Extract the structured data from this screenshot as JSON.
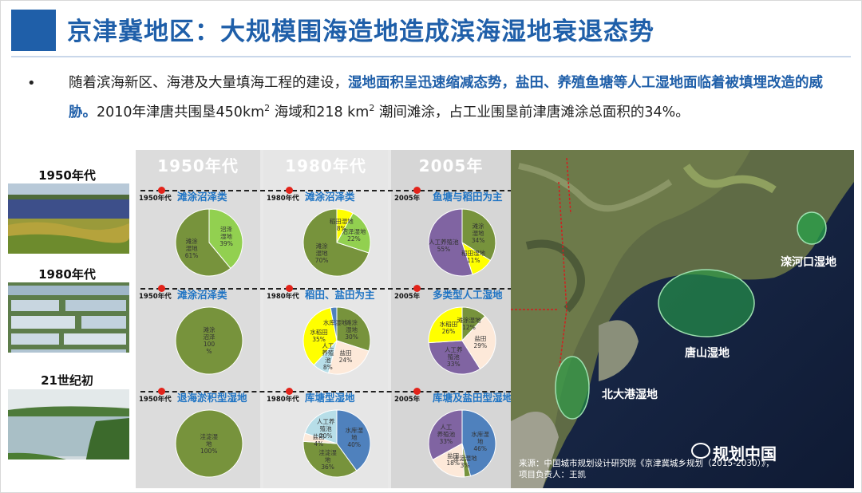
{
  "title": "京津冀地区：大规模围海造地造成滨海湿地衰退态势",
  "bullet": {
    "part1": "随着滨海新区、海港及大量填海工程的建设，",
    "highlight": "湿地面积呈迅速缩减态势，盐田、养殖鱼塘等人工湿地面临着被填埋改造的威胁。",
    "part2a": "2010年津唐共围垦450km",
    "sup1": "2",
    "part2b": " 海域和218 km",
    "sup2": "2",
    "part2c": " 潮间滩涂，占工业围垦前津唐滩涂总面积的34%。"
  },
  "photos": [
    {
      "label": "1950年代"
    },
    {
      "label": "1980年代"
    },
    {
      "label": "21世纪初"
    }
  ],
  "columns": [
    {
      "head": "1950年代"
    },
    {
      "head": "1980年代"
    },
    {
      "head": "2005年"
    }
  ],
  "rows": [
    {
      "cells": [
        {
          "era": "1950年代",
          "title": "滩涂沼泽类",
          "slices": [
            {
              "label": "沼泽\n湿地\n39%",
              "value": 39,
              "color": "#92d050"
            },
            {
              "label": "滩涂\n湿地\n61%",
              "value": 61,
              "color": "#77933c"
            }
          ]
        },
        {
          "era": "1980年代",
          "title": "滩涂沼泽类",
          "slices": [
            {
              "label": "稻田湿地\n8%",
              "value": 8,
              "color": "#ffff00"
            },
            {
              "label": "沼泽湿地\n22%",
              "value": 22,
              "color": "#92d050"
            },
            {
              "label": "滩涂\n湿地\n70%",
              "value": 70,
              "color": "#77933c"
            }
          ]
        },
        {
          "era": "2005年",
          "title": "鱼塘与稻田为主",
          "slices": [
            {
              "label": "滩涂\n湿地\n34%",
              "value": 34,
              "color": "#77933c"
            },
            {
              "label": "稻田湿地\n11%",
              "value": 11,
              "color": "#ffff00"
            },
            {
              "label": "人工养殖池\n55%",
              "value": 55,
              "color": "#8064a2"
            }
          ]
        }
      ]
    },
    {
      "cells": [
        {
          "era": "1950年代",
          "title": "滩涂沼泽类",
          "slices": [
            {
              "label": "滩涂\n沼泽\n100\n%",
              "value": 100,
              "color": "#77933c"
            }
          ]
        },
        {
          "era": "1980年代",
          "title": "稻田、盐田为主",
          "slices": [
            {
              "label": "滩涂\n湿地\n30%",
              "value": 30,
              "color": "#77933c"
            },
            {
              "label": "盐田\n24%",
              "value": 24,
              "color": "#fde9d9"
            },
            {
              "label": "人工\n养殖\n池\n8%",
              "value": 8,
              "color": "#b7dee8"
            },
            {
              "label": "水稻田\n35%",
              "value": 35,
              "color": "#ffff00"
            },
            {
              "label": "水库湿地",
              "value": 3,
              "color": "#4f81bd"
            }
          ]
        },
        {
          "era": "2005年",
          "title": "多类型人工湿地",
          "slices": [
            {
              "label": "滩涂湿地\n12%",
              "value": 12,
              "color": "#77933c"
            },
            {
              "label": "盐田\n29%",
              "value": 29,
              "color": "#fde9d9"
            },
            {
              "label": "人工养\n殖池\n33%",
              "value": 33,
              "color": "#8064a2"
            },
            {
              "label": "水稻田\n26%",
              "value": 26,
              "color": "#ffff00"
            }
          ]
        }
      ]
    },
    {
      "cells": [
        {
          "era": "1950年代",
          "title": "退海淤积型湿地",
          "slices": [
            {
              "label": "洼淀湿\n地\n100%",
              "value": 100,
              "color": "#77933c"
            }
          ]
        },
        {
          "era": "1980年代",
          "title": "库塘型湿地",
          "slices": [
            {
              "label": "水库湿\n地\n40%",
              "value": 40,
              "color": "#4f81bd"
            },
            {
              "label": "洼淀湿\n地\n36%",
              "value": 36,
              "color": "#77933c"
            },
            {
              "label": "盐田\n4%",
              "value": 4,
              "color": "#fde9d9"
            },
            {
              "label": "人工养\n殖池\n20%",
              "value": 20,
              "color": "#b7dee8"
            }
          ]
        },
        {
          "era": "2005年",
          "title": "库塘及盐田型湿地",
          "slices": [
            {
              "label": "水库湿\n地\n46%",
              "value": 46,
              "color": "#4f81bd"
            },
            {
              "label": "洼淀湿地\n3%",
              "value": 3,
              "color": "#77933c"
            },
            {
              "label": "盐田\n18%",
              "value": 18,
              "color": "#fde9d9"
            },
            {
              "label": "人工\n养殖池\n33%",
              "value": 33,
              "color": "#8064a2"
            }
          ]
        }
      ]
    }
  ],
  "map_labels": {
    "luanhe": "滦河口湿地",
    "tangshan": "唐山湿地",
    "beidagang": "北大港湿地"
  },
  "source": {
    "line1": "来源：中国城市规划设计研究院《京津冀城乡规划（2015-2030）》，",
    "line2": "项目负责人：王凯"
  },
  "watermark": "规划中国"
}
